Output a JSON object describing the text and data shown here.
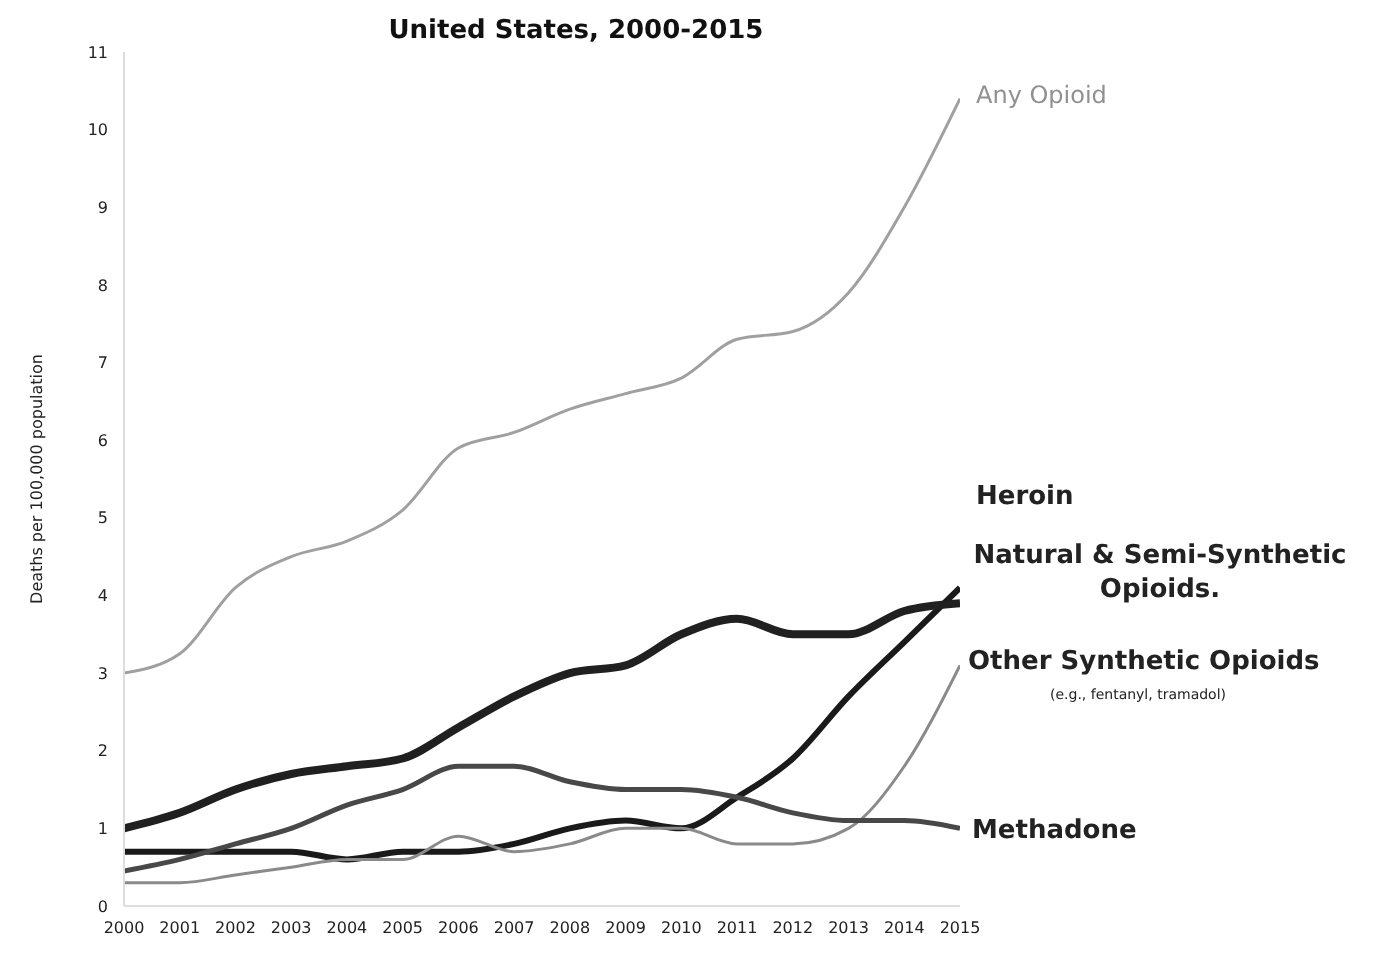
{
  "chart_data": {
    "type": "line",
    "title": "United States, 2000-2015",
    "ylabel": "Deaths per 100,000 population",
    "x": [
      2000,
      2001,
      2002,
      2003,
      2004,
      2005,
      2006,
      2007,
      2008,
      2009,
      2010,
      2011,
      2012,
      2013,
      2014,
      2015
    ],
    "xlim": [
      2000,
      2015
    ],
    "xticks": [
      2000,
      2001,
      2002,
      2003,
      2004,
      2005,
      2006,
      2007,
      2008,
      2009,
      2010,
      2011,
      2012,
      2013,
      2014,
      2015
    ],
    "ylim": [
      0,
      11
    ],
    "yticks": [
      0,
      1,
      2,
      3,
      4,
      5,
      6,
      7,
      8,
      9,
      10,
      11
    ],
    "grid": false,
    "legend": false,
    "marker": "none",
    "line_style": "solid",
    "series": [
      {
        "name": "Any Opioid",
        "color": "#a0a0a0",
        "values": [
          3.0,
          3.25,
          4.1,
          4.5,
          4.7,
          5.1,
          5.9,
          6.1,
          6.4,
          6.6,
          6.8,
          7.3,
          7.4,
          7.9,
          9.0,
          10.4
        ]
      },
      {
        "name": "Heroin",
        "color": "#1a1a1a",
        "values": [
          0.7,
          0.7,
          0.7,
          0.7,
          0.6,
          0.7,
          0.7,
          0.8,
          1.0,
          1.1,
          1.0,
          1.4,
          1.9,
          2.7,
          3.4,
          4.1
        ]
      },
      {
        "name": "Natural & Semi-Synthetic Opioids.",
        "color": "#202020",
        "values": [
          1.0,
          1.2,
          1.5,
          1.7,
          1.8,
          1.9,
          2.3,
          2.7,
          3.0,
          3.1,
          3.5,
          3.7,
          3.5,
          3.5,
          3.8,
          3.9
        ]
      },
      {
        "name": "Other Synthetic Opioids",
        "color": "#8a8a8a",
        "values": [
          0.3,
          0.3,
          0.4,
          0.5,
          0.6,
          0.6,
          0.9,
          0.7,
          0.8,
          1.0,
          1.0,
          0.8,
          0.8,
          1.0,
          1.8,
          3.1
        ]
      },
      {
        "name": "Methadone",
        "color": "#484848",
        "values": [
          0.45,
          0.6,
          0.8,
          1.0,
          1.3,
          1.5,
          1.8,
          1.8,
          1.6,
          1.5,
          1.5,
          1.4,
          1.2,
          1.1,
          1.1,
          1.0
        ]
      }
    ],
    "annotations": [
      "(e.g., fentanyl, tramadol)"
    ]
  }
}
